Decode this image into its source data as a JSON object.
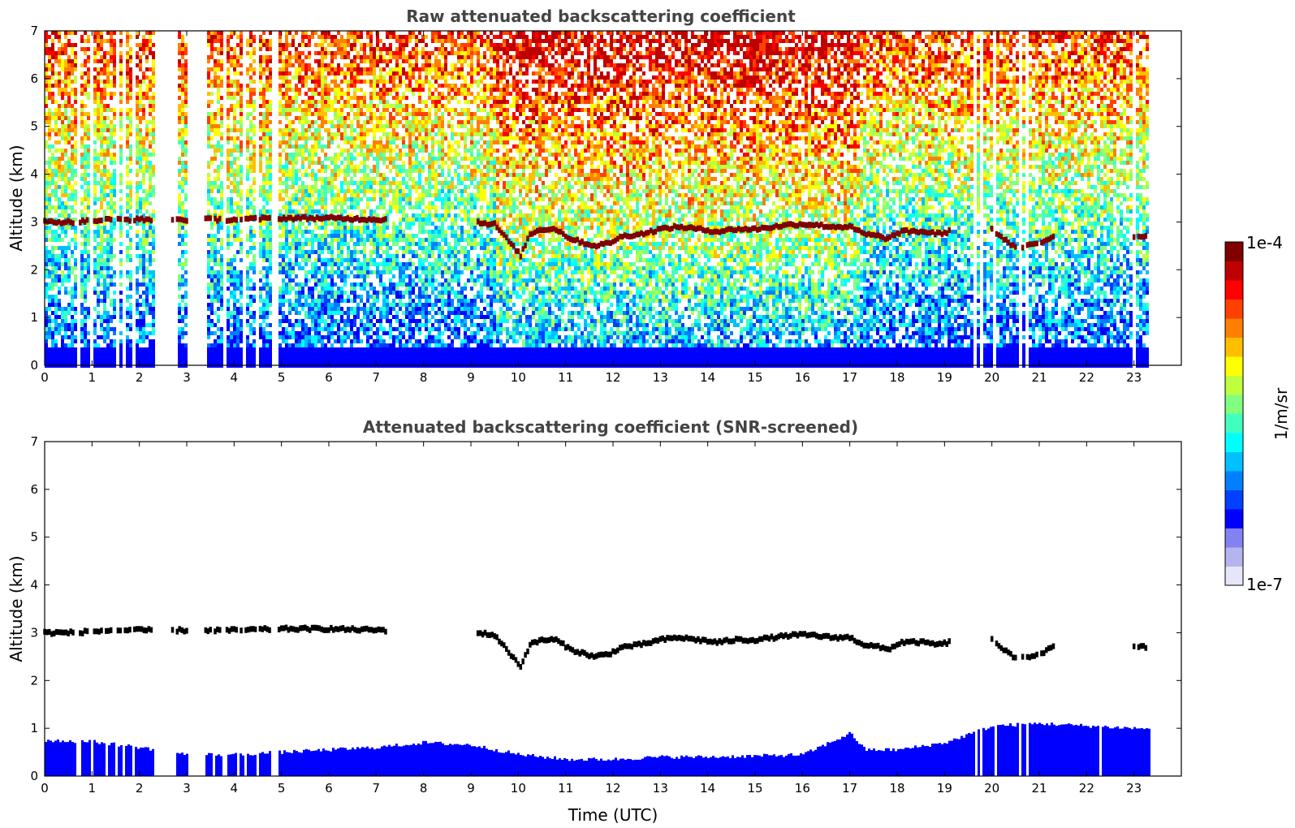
{
  "chart_data": [
    {
      "type": "heatmap",
      "title": "Raw attenuated backscattering coefficient",
      "xlabel": "",
      "ylabel": "Altitude (km)",
      "xlim": [
        0,
        24
      ],
      "ylim": [
        0,
        7
      ],
      "xticks": [
        "0",
        "1",
        "2",
        "3",
        "4",
        "5",
        "6",
        "7",
        "8",
        "9",
        "10",
        "11",
        "12",
        "13",
        "14",
        "15",
        "16",
        "17",
        "18",
        "19",
        "20",
        "21",
        "22",
        "23"
      ],
      "yticks": [
        "0",
        "1",
        "2",
        "3",
        "4",
        "5",
        "6",
        "7"
      ],
      "data_end_hour": 23.3,
      "noise_fill": true,
      "gap_intervals_hours": [
        [
          0.65,
          0.72
        ],
        [
          0.95,
          1.02
        ],
        [
          1.25,
          1.3
        ],
        [
          1.45,
          1.52
        ],
        [
          1.62,
          1.68
        ],
        [
          1.82,
          1.86
        ],
        [
          2.28,
          2.68
        ],
        [
          2.72,
          2.76
        ],
        [
          3.0,
          3.38
        ],
        [
          3.5,
          3.55
        ],
        [
          3.72,
          3.82
        ],
        [
          4.05,
          4.1
        ],
        [
          4.18,
          4.24
        ],
        [
          4.45,
          4.52
        ],
        [
          4.78,
          4.92
        ],
        [
          19.6,
          19.66
        ],
        [
          19.7,
          19.75
        ],
        [
          20.02,
          20.08
        ],
        [
          20.55,
          20.62
        ],
        [
          20.7,
          20.75
        ],
        [
          21.0,
          21.03
        ],
        [
          22.25,
          22.27
        ],
        [
          22.95,
          22.98
        ],
        [
          23.05,
          23.08
        ]
      ],
      "cloud_layer": [
        [
          0,
          3.0
        ],
        [
          0.6,
          3.0
        ],
        [
          1.4,
          3.05
        ],
        [
          2.0,
          3.05
        ],
        [
          3.0,
          3.05
        ],
        [
          4.0,
          3.05
        ],
        [
          5.0,
          3.08
        ],
        [
          6.0,
          3.08
        ],
        [
          7.2,
          3.05
        ],
        [
          9.1,
          3.0
        ],
        [
          9.5,
          2.95
        ],
        [
          10.05,
          2.3
        ],
        [
          10.25,
          2.75
        ],
        [
          10.5,
          2.85
        ],
        [
          10.8,
          2.85
        ],
        [
          11.1,
          2.65
        ],
        [
          11.6,
          2.5
        ],
        [
          11.9,
          2.55
        ],
        [
          12.2,
          2.7
        ],
        [
          12.6,
          2.75
        ],
        [
          13.0,
          2.85
        ],
        [
          13.4,
          2.9
        ],
        [
          13.8,
          2.85
        ],
        [
          14.2,
          2.8
        ],
        [
          14.6,
          2.85
        ],
        [
          15.0,
          2.85
        ],
        [
          15.4,
          2.9
        ],
        [
          15.8,
          2.95
        ],
        [
          16.2,
          2.95
        ],
        [
          16.6,
          2.9
        ],
        [
          17.0,
          2.9
        ],
        [
          17.3,
          2.75
        ],
        [
          17.6,
          2.7
        ],
        [
          17.8,
          2.65
        ],
        [
          18.1,
          2.8
        ],
        [
          18.5,
          2.8
        ],
        [
          18.9,
          2.75
        ],
        [
          19.1,
          2.8
        ],
        [
          20.0,
          2.85
        ],
        [
          20.5,
          2.45
        ],
        [
          21.0,
          2.55
        ],
        [
          21.3,
          2.7
        ],
        [
          23.0,
          2.7
        ],
        [
          23.3,
          2.7
        ]
      ]
    },
    {
      "type": "heatmap",
      "title": "Attenuated backscattering coefficient (SNR-screened)",
      "xlabel": "Time (UTC)",
      "ylabel": "Altitude (km)",
      "xlim": [
        0,
        24
      ],
      "ylim": [
        0,
        7
      ],
      "xticks": [
        "0",
        "1",
        "2",
        "3",
        "4",
        "5",
        "6",
        "7",
        "8",
        "9",
        "10",
        "11",
        "12",
        "13",
        "14",
        "15",
        "16",
        "17",
        "18",
        "19",
        "20",
        "21",
        "22",
        "23"
      ],
      "yticks": [
        "0",
        "1",
        "2",
        "3",
        "4",
        "5",
        "6",
        "7"
      ],
      "data_end_hour": 23.3,
      "noise_fill": false,
      "boundary_layer_top": [
        [
          0,
          0.75
        ],
        [
          1,
          0.72
        ],
        [
          2,
          0.6
        ],
        [
          3,
          0.45
        ],
        [
          4,
          0.45
        ],
        [
          5,
          0.5
        ],
        [
          6,
          0.55
        ],
        [
          7,
          0.6
        ],
        [
          8,
          0.7
        ],
        [
          9,
          0.65
        ],
        [
          10,
          0.45
        ],
        [
          11,
          0.35
        ],
        [
          12,
          0.35
        ],
        [
          13,
          0.4
        ],
        [
          14,
          0.4
        ],
        [
          15,
          0.42
        ],
        [
          16,
          0.45
        ],
        [
          17,
          0.9
        ],
        [
          17.3,
          0.55
        ],
        [
          18,
          0.55
        ],
        [
          19,
          0.7
        ],
        [
          20,
          1.05
        ],
        [
          21,
          1.1
        ],
        [
          22,
          1.05
        ],
        [
          23,
          1.0
        ],
        [
          23.3,
          1.0
        ]
      ],
      "gap_intervals_hours": [
        [
          0.65,
          0.72
        ],
        [
          0.95,
          1.02
        ],
        [
          1.25,
          1.3
        ],
        [
          1.45,
          1.52
        ],
        [
          1.62,
          1.68
        ],
        [
          1.82,
          1.86
        ],
        [
          2.28,
          2.68
        ],
        [
          2.72,
          2.76
        ],
        [
          3.0,
          3.38
        ],
        [
          3.5,
          3.55
        ],
        [
          3.72,
          3.82
        ],
        [
          4.05,
          4.1
        ],
        [
          4.18,
          4.24
        ],
        [
          4.45,
          4.52
        ],
        [
          4.78,
          4.92
        ],
        [
          19.6,
          19.66
        ],
        [
          19.7,
          19.75
        ],
        [
          20.02,
          20.08
        ],
        [
          20.55,
          20.62
        ],
        [
          20.7,
          20.75
        ],
        [
          21.0,
          21.03
        ],
        [
          22.25,
          22.27
        ],
        [
          22.95,
          22.98
        ],
        [
          23.05,
          23.08
        ]
      ],
      "cloud_layer": [
        [
          0,
          3.0
        ],
        [
          0.6,
          3.0
        ],
        [
          1.4,
          3.05
        ],
        [
          2.0,
          3.05
        ],
        [
          3.0,
          3.05
        ],
        [
          4.0,
          3.05
        ],
        [
          5.0,
          3.08
        ],
        [
          6.0,
          3.08
        ],
        [
          7.2,
          3.05
        ],
        [
          9.1,
          3.0
        ],
        [
          9.5,
          2.95
        ],
        [
          10.05,
          2.3
        ],
        [
          10.25,
          2.75
        ],
        [
          10.5,
          2.85
        ],
        [
          10.8,
          2.85
        ],
        [
          11.1,
          2.65
        ],
        [
          11.6,
          2.5
        ],
        [
          11.9,
          2.55
        ],
        [
          12.2,
          2.7
        ],
        [
          12.6,
          2.75
        ],
        [
          13.0,
          2.85
        ],
        [
          13.4,
          2.9
        ],
        [
          13.8,
          2.85
        ],
        [
          14.2,
          2.8
        ],
        [
          14.6,
          2.85
        ],
        [
          15.0,
          2.85
        ],
        [
          15.4,
          2.9
        ],
        [
          15.8,
          2.95
        ],
        [
          16.2,
          2.95
        ],
        [
          16.6,
          2.9
        ],
        [
          17.0,
          2.9
        ],
        [
          17.3,
          2.75
        ],
        [
          17.6,
          2.7
        ],
        [
          17.8,
          2.65
        ],
        [
          18.1,
          2.8
        ],
        [
          18.5,
          2.8
        ],
        [
          18.9,
          2.75
        ],
        [
          19.1,
          2.8
        ],
        [
          20.0,
          2.85
        ],
        [
          20.5,
          2.45
        ],
        [
          21.0,
          2.55
        ],
        [
          21.3,
          2.7
        ],
        [
          23.0,
          2.7
        ],
        [
          23.3,
          2.7
        ]
      ]
    }
  ],
  "colorbar": {
    "label": "1/m/sr",
    "max_label": "1e-4",
    "min_label": "1e-7",
    "colors": [
      "#e6e6fa",
      "#b4b4ee",
      "#8282f0",
      "#0000ff",
      "#0040ff",
      "#0080ff",
      "#00c0ff",
      "#00ffff",
      "#40ffbf",
      "#80ff80",
      "#bfff40",
      "#ffff00",
      "#ffbf00",
      "#ff8000",
      "#ff4000",
      "#ff0000",
      "#bf0000",
      "#800000"
    ]
  }
}
